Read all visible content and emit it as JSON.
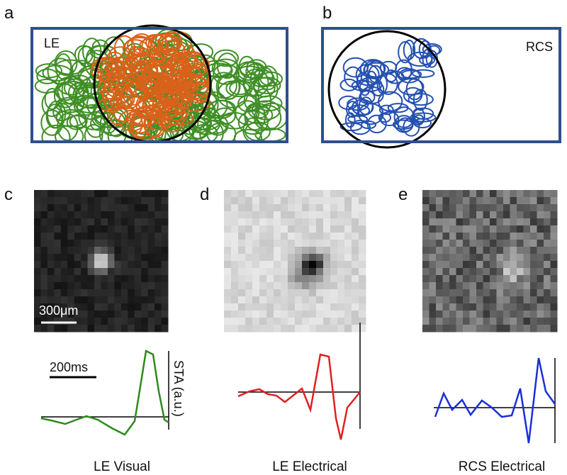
{
  "panels": [
    {
      "label": "a",
      "name": "LE"
    },
    {
      "label": "b",
      "name": "RCS"
    },
    {
      "label": "c",
      "scale_bar": "300μm",
      "time_bar": "200ms",
      "y_axis": "STA (a.u.)",
      "caption": "LE Visual"
    },
    {
      "label": "d",
      "caption": "LE Electrical"
    },
    {
      "label": "e",
      "caption": "RCS Electrical"
    }
  ]
}
